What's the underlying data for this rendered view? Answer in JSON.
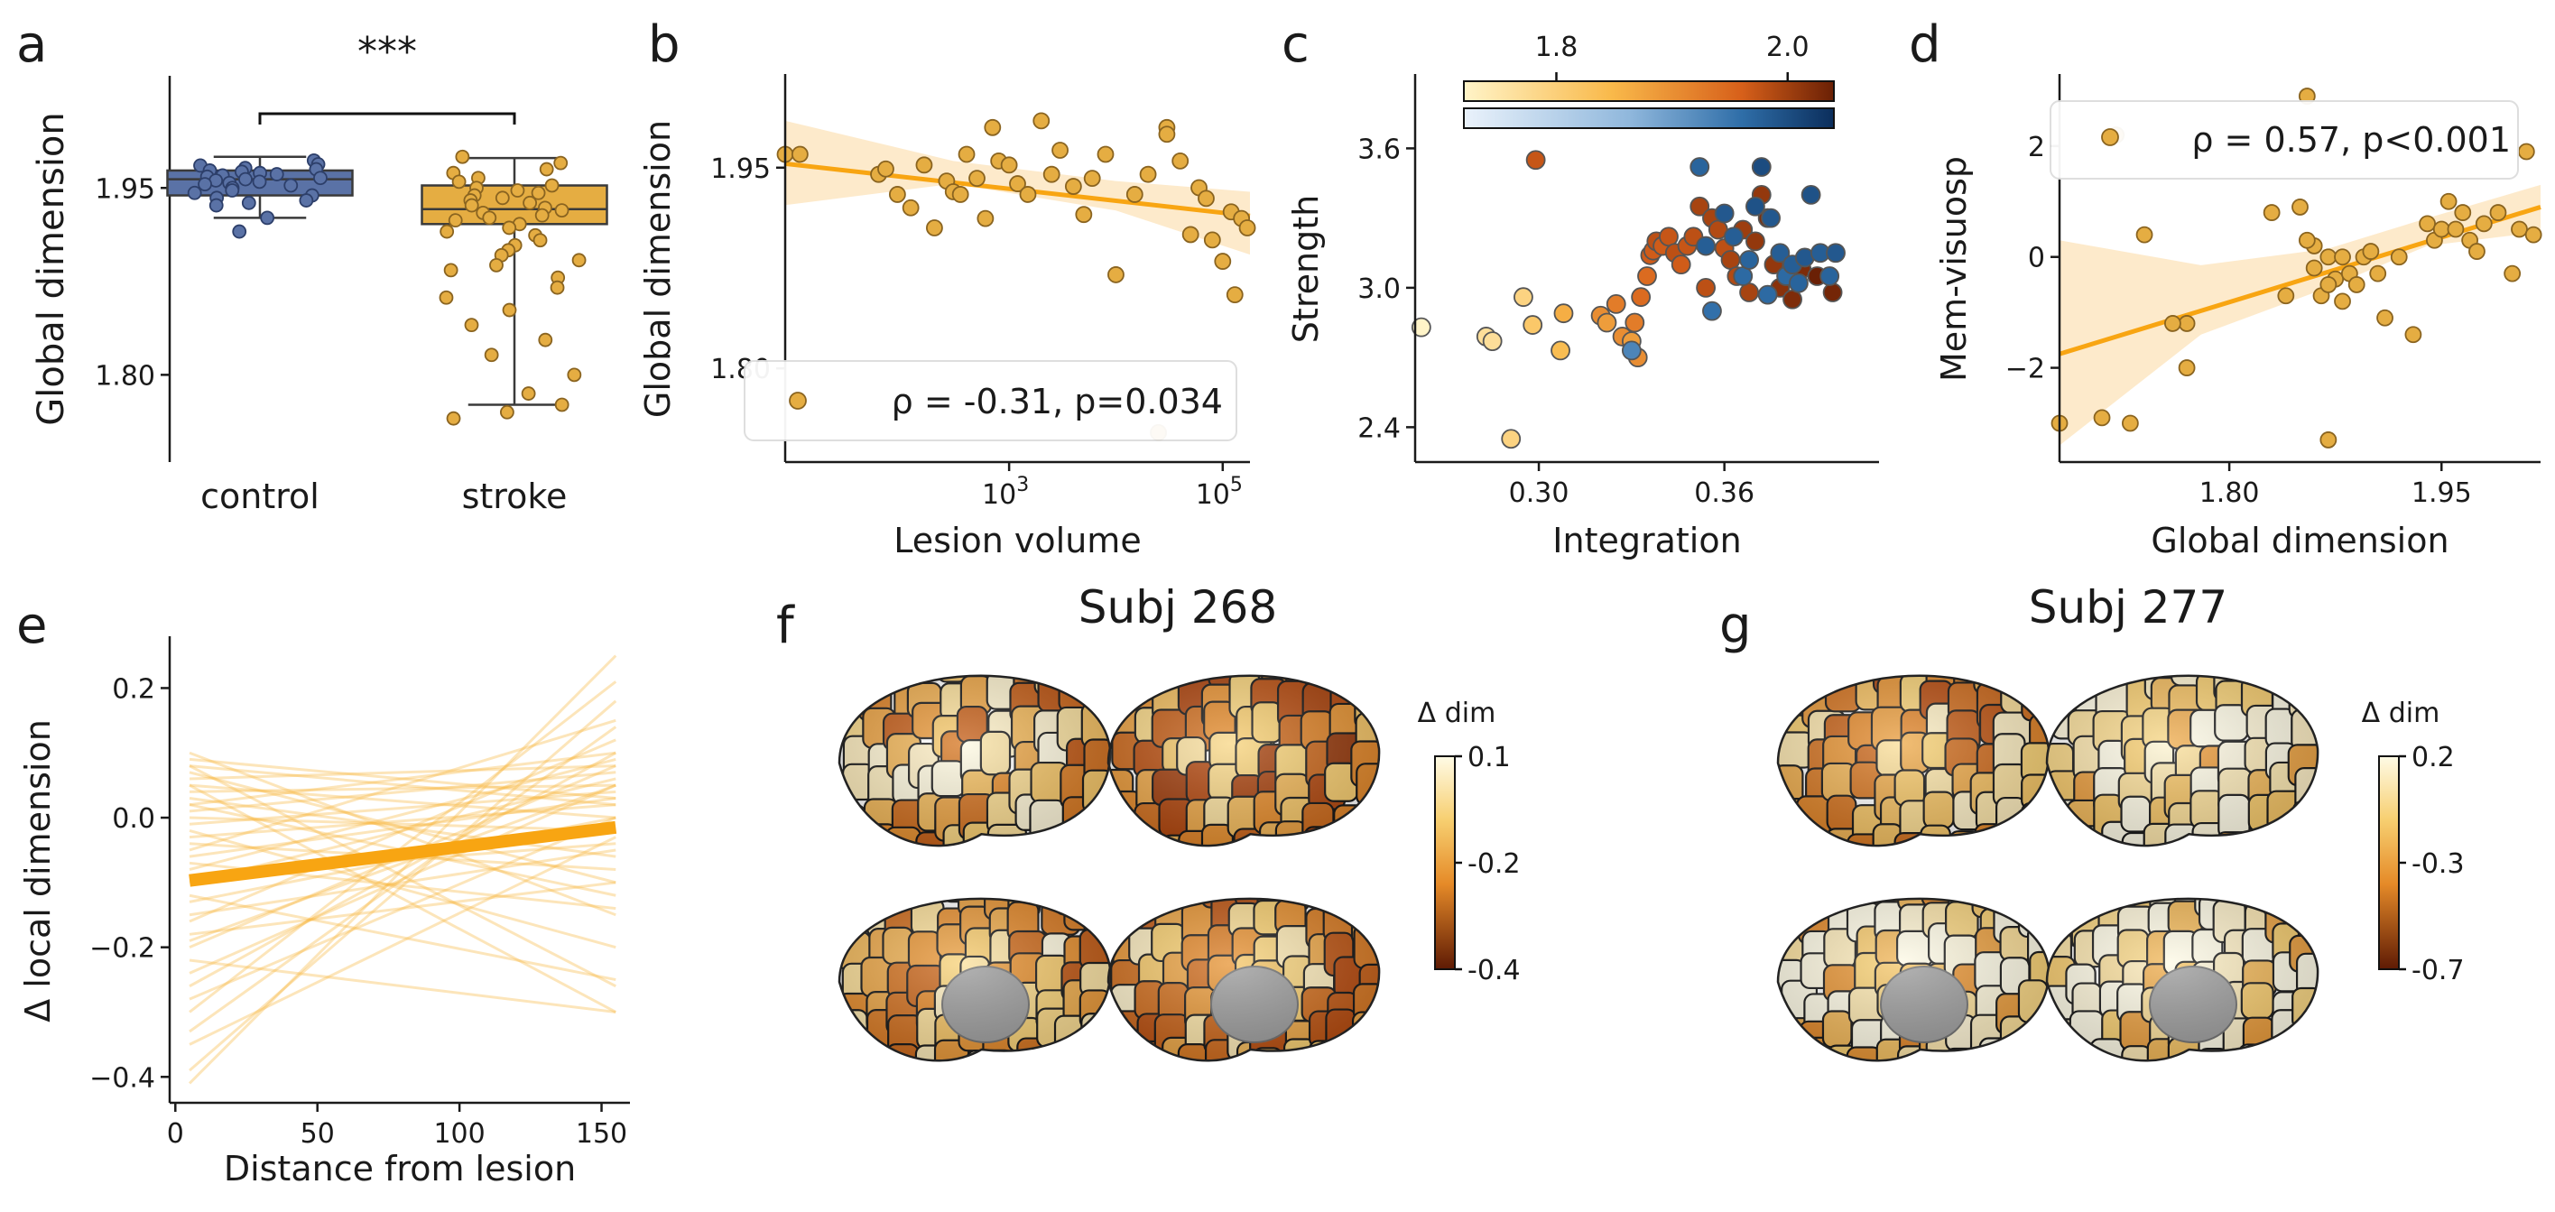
{
  "colors": {
    "control_fill": "#5a72a6",
    "control_edge": "#2d3f6a",
    "stroke_fill": "#e5ad42",
    "stroke_edge": "#8a6420",
    "orange": "#f8a512",
    "band": "#fde6c2",
    "axis": "#1a1a1a",
    "gray": "#444444"
  },
  "panel_labels": [
    "a",
    "b",
    "c",
    "d",
    "e",
    "f",
    "g"
  ],
  "chart_data": [
    {
      "id": "a",
      "type": "box",
      "categories": [
        "control",
        "stroke"
      ],
      "ylabel": "Global dimension",
      "yticks": [
        1.8,
        1.95
      ],
      "ytick_labels": [
        "1.80",
        "1.95"
      ],
      "ylim": [
        1.73,
        2.04
      ],
      "significance": "***",
      "boxes": [
        {
          "q1": 1.944,
          "median": 1.957,
          "q3": 1.964,
          "whisker_low": 1.926,
          "whisker_high": 1.975
        },
        {
          "q1": 1.921,
          "median": 1.933,
          "q3": 1.952,
          "whisker_low": 1.776,
          "whisker_high": 1.974
        }
      ],
      "points": [
        [
          1.972,
          1.969,
          1.968,
          1.966,
          1.965,
          1.964,
          1.963,
          1.962,
          1.961,
          1.96,
          1.959,
          1.958,
          1.957,
          1.956,
          1.955,
          1.954,
          1.953,
          1.952,
          1.95,
          1.948,
          1.946,
          1.944,
          1.942,
          1.94,
          1.938,
          1.936,
          1.926,
          1.915
        ],
        [
          1.975,
          1.97,
          1.965,
          1.962,
          1.958,
          1.955,
          1.952,
          1.95,
          1.948,
          1.946,
          1.944,
          1.942,
          1.94,
          1.938,
          1.936,
          1.934,
          1.932,
          1.93,
          1.928,
          1.926,
          1.924,
          1.921,
          1.918,
          1.915,
          1.912,
          1.908,
          1.904,
          1.9,
          1.896,
          1.892,
          1.888,
          1.884,
          1.878,
          1.87,
          1.862,
          1.852,
          1.84,
          1.828,
          1.816,
          1.8,
          1.785,
          1.776,
          1.77,
          1.765
        ]
      ]
    },
    {
      "id": "b",
      "type": "scatter",
      "xlabel": "Lesion volume",
      "ylabel": "Global dimension",
      "xscale": "log",
      "xlim": [
        8,
        180000
      ],
      "xticks": [
        1000,
        100000
      ],
      "xtick_base": "10",
      "xtick_exps": [
        "3",
        "5"
      ],
      "yticks": [
        1.8,
        1.95
      ],
      "ytick_labels": [
        "1.80",
        "1.95"
      ],
      "ylim": [
        1.73,
        2.02
      ],
      "legend": "ρ = -0.31, p=0.034",
      "fit": {
        "x": [
          8,
          180000
        ],
        "y": [
          1.953,
          1.914
        ]
      },
      "band": {
        "x": [
          8,
          300,
          10000,
          180000
        ],
        "upper": [
          1.985,
          1.955,
          1.94,
          1.932
        ],
        "lower": [
          1.922,
          1.938,
          1.918,
          1.885
        ]
      },
      "x": [
        8,
        11,
        60,
        70,
        90,
        120,
        160,
        200,
        260,
        300,
        350,
        400,
        500,
        600,
        700,
        800,
        1000,
        1200,
        1500,
        2000,
        2500,
        3000,
        4000,
        5000,
        6000,
        8000,
        10000,
        15000,
        20000,
        30000,
        40000,
        50000,
        60000,
        70000,
        80000,
        100000,
        120000,
        150000,
        170000,
        30000,
        25000,
        130000
      ],
      "y": [
        1.96,
        1.96,
        1.945,
        1.949,
        1.93,
        1.92,
        1.952,
        1.905,
        1.94,
        1.932,
        1.93,
        1.96,
        1.942,
        1.912,
        1.98,
        1.955,
        1.952,
        1.938,
        1.93,
        1.985,
        1.945,
        1.963,
        1.936,
        1.915,
        1.942,
        1.96,
        1.87,
        1.93,
        1.945,
        1.98,
        1.955,
        1.9,
        1.935,
        1.927,
        1.896,
        1.88,
        1.917,
        1.912,
        1.905,
        1.975,
        1.752,
        1.855
      ]
    },
    {
      "id": "c",
      "type": "scatter",
      "xlabel": "Integration",
      "ylabel": "Strength",
      "xticks": [
        0.3,
        0.36
      ],
      "xtick_labels": [
        "0.30",
        "0.36"
      ],
      "xlim": [
        0.26,
        0.41
      ],
      "yticks": [
        2.4,
        3.0,
        3.6
      ],
      "ytick_labels": [
        "2.4",
        "3.0",
        "3.6"
      ],
      "ylim": [
        2.25,
        3.92
      ],
      "colorbar": {
        "ticks": [
          1.8,
          2.0
        ],
        "tick_labels": [
          "1.8",
          "2.0"
        ],
        "range": [
          1.72,
          2.04
        ]
      },
      "stroke_points": {
        "x": [
          0.262,
          0.283,
          0.285,
          0.291,
          0.295,
          0.298,
          0.299,
          0.307,
          0.308,
          0.32,
          0.322,
          0.325,
          0.327,
          0.33,
          0.331,
          0.332,
          0.333,
          0.335,
          0.336,
          0.337,
          0.338,
          0.34,
          0.342,
          0.344,
          0.346,
          0.348,
          0.35,
          0.352,
          0.354,
          0.356,
          0.358,
          0.36,
          0.362,
          0.364,
          0.366,
          0.368,
          0.37,
          0.372,
          0.374,
          0.376,
          0.378,
          0.38,
          0.382,
          0.385,
          0.39,
          0.395
        ],
        "y": [
          2.83,
          2.79,
          2.77,
          2.35,
          2.96,
          2.84,
          3.55,
          2.73,
          2.89,
          2.88,
          2.85,
          2.93,
          2.79,
          2.77,
          2.85,
          2.7,
          2.96,
          3.05,
          3.14,
          3.16,
          3.2,
          3.18,
          3.22,
          3.15,
          3.1,
          3.18,
          3.22,
          3.35,
          3.0,
          3.3,
          3.25,
          3.17,
          3.12,
          3.05,
          3.25,
          2.98,
          3.2,
          3.4,
          3.3,
          3.1,
          3.0,
          3.05,
          2.95,
          3.08,
          3.05,
          2.98
        ],
        "c": [
          1.72,
          1.76,
          1.76,
          1.78,
          1.78,
          1.8,
          1.95,
          1.82,
          1.84,
          1.88,
          1.86,
          1.9,
          1.88,
          1.86,
          1.9,
          1.88,
          1.92,
          1.92,
          1.94,
          1.94,
          1.96,
          1.94,
          1.95,
          1.96,
          1.94,
          1.95,
          1.96,
          1.98,
          1.96,
          1.98,
          1.97,
          1.96,
          1.98,
          1.97,
          1.99,
          1.98,
          2.0,
          2.0,
          2.02,
          2.0,
          2.01,
          2.0,
          2.02,
          2.02,
          2.04,
          2.03
        ]
      },
      "control_points": {
        "x": [
          0.33,
          0.352,
          0.356,
          0.36,
          0.363,
          0.366,
          0.37,
          0.372,
          0.375,
          0.378,
          0.38,
          0.382,
          0.384,
          0.386,
          0.388,
          0.391,
          0.394,
          0.396,
          0.354,
          0.368,
          0.374
        ],
        "y": [
          2.73,
          3.52,
          2.9,
          3.32,
          3.22,
          3.05,
          3.35,
          3.52,
          3.3,
          3.15,
          3.05,
          3.1,
          3.02,
          3.13,
          3.4,
          3.15,
          3.05,
          3.15,
          3.18,
          3.12,
          2.97
        ],
        "c": [
          1.9,
          1.95,
          1.93,
          1.97,
          1.96,
          1.94,
          1.98,
          1.99,
          1.97,
          1.96,
          1.94,
          1.96,
          1.95,
          1.97,
          1.98,
          1.96,
          1.95,
          1.97,
          1.96,
          1.95,
          1.94
        ]
      }
    },
    {
      "id": "d",
      "type": "scatter",
      "xlabel": "Global dimension",
      "ylabel": "Mem-visuosp",
      "xticks": [
        1.8,
        1.95
      ],
      "xtick_labels": [
        "1.80",
        "1.95"
      ],
      "xlim": [
        1.68,
        2.02
      ],
      "yticks": [
        -2,
        0,
        2
      ],
      "ytick_labels": [
        "−2",
        "0",
        "2"
      ],
      "ylim": [
        -3.7,
        3.3
      ],
      "legend": "ρ = 0.57, p<0.001",
      "fit": {
        "x": [
          1.68,
          2.02
        ],
        "y": [
          -1.75,
          0.9
        ]
      },
      "band": {
        "x": [
          1.68,
          1.78,
          1.87,
          1.94,
          2.02
        ],
        "upper": [
          0.3,
          -0.15,
          0.15,
          0.7,
          1.3
        ],
        "lower": [
          -3.4,
          -1.4,
          -0.55,
          0.2,
          0.45
        ]
      },
      "x": [
        1.68,
        1.71,
        1.72,
        1.74,
        1.77,
        1.77,
        1.83,
        1.84,
        1.85,
        1.855,
        1.86,
        1.86,
        1.865,
        1.87,
        1.87,
        1.875,
        1.88,
        1.885,
        1.89,
        1.895,
        1.9,
        1.905,
        1.91,
        1.92,
        1.93,
        1.94,
        1.945,
        1.95,
        1.955,
        1.96,
        1.965,
        1.97,
        1.975,
        1.98,
        1.99,
        2.0,
        2.005,
        2.01,
        2.015,
        1.87,
        1.88,
        1.855,
        1.73,
        1.76
      ],
      "y": [
        -3.0,
        -2.9,
        2.2,
        0.4,
        -2.0,
        -1.2,
        0.8,
        -0.7,
        0.9,
        2.9,
        -0.2,
        0.2,
        -0.7,
        -3.3,
        0.0,
        -0.4,
        0.0,
        -0.3,
        -0.5,
        0.0,
        0.1,
        -0.3,
        -1.1,
        0.0,
        -1.4,
        0.6,
        0.3,
        0.5,
        1.0,
        0.5,
        0.8,
        0.3,
        0.1,
        0.6,
        0.8,
        -0.3,
        0.5,
        1.9,
        0.4,
        -0.5,
        -0.8,
        0.3,
        -3.0,
        -1.2
      ]
    },
    {
      "id": "e",
      "type": "line",
      "xlabel": "Distance from lesion",
      "ylabel": "Δ local dimension",
      "xticks": [
        0,
        50,
        100,
        150
      ],
      "xtick_labels": [
        "0",
        "50",
        "100",
        "150"
      ],
      "xlim": [
        -2,
        160
      ],
      "yticks": [
        -0.4,
        -0.2,
        0.0,
        0.2
      ],
      "ytick_labels": [
        "−0.4",
        "−0.2",
        "0.0",
        "0.2"
      ],
      "ylim": [
        -0.44,
        0.28
      ],
      "mean_line": {
        "x": [
          5,
          155
        ],
        "y": [
          -0.097,
          -0.015
        ]
      },
      "lines": [
        [
          -0.41,
          0.25
        ],
        [
          -0.39,
          0.18
        ],
        [
          -0.33,
          0.14
        ],
        [
          -0.3,
          0.21
        ],
        [
          -0.28,
          0.0
        ],
        [
          -0.26,
          0.1
        ],
        [
          -0.24,
          0.05
        ],
        [
          -0.22,
          -0.3
        ],
        [
          -0.2,
          0.08
        ],
        [
          -0.18,
          -0.1
        ],
        [
          -0.16,
          0.12
        ],
        [
          -0.15,
          -0.05
        ],
        [
          -0.13,
          0.0
        ],
        [
          -0.12,
          -0.25
        ],
        [
          -0.1,
          0.06
        ],
        [
          -0.09,
          -0.04
        ],
        [
          -0.08,
          0.09
        ],
        [
          -0.07,
          -0.14
        ],
        [
          -0.06,
          0.03
        ],
        [
          -0.05,
          0.15
        ],
        [
          -0.04,
          -0.08
        ],
        [
          -0.03,
          0.02
        ],
        [
          -0.02,
          -0.2
        ],
        [
          -0.01,
          0.04
        ],
        [
          0.0,
          -0.02
        ],
        [
          0.01,
          0.07
        ],
        [
          0.02,
          -0.12
        ],
        [
          0.02,
          0.1
        ],
        [
          0.03,
          -0.06
        ],
        [
          0.04,
          0.05
        ],
        [
          0.05,
          -0.3
        ],
        [
          0.05,
          0.0
        ],
        [
          0.06,
          0.08
        ],
        [
          0.07,
          -0.1
        ],
        [
          0.08,
          0.02
        ],
        [
          0.08,
          -0.26
        ],
        [
          0.09,
          0.03
        ],
        [
          0.1,
          -0.15
        ],
        [
          -0.19,
          0.05
        ],
        [
          -0.35,
          -0.03
        ]
      ]
    },
    {
      "id": "f",
      "type": "brain-map",
      "title": "Subj 268",
      "colorbar_label": "Δ dim",
      "colorbar_tick_labels": [
        "0.1",
        "-0.2",
        "-0.4"
      ]
    },
    {
      "id": "g",
      "type": "brain-map",
      "title": "Subj 277",
      "colorbar_label": "Δ dim",
      "colorbar_tick_labels": [
        "0.2",
        "-0.3",
        "-0.7"
      ]
    }
  ]
}
